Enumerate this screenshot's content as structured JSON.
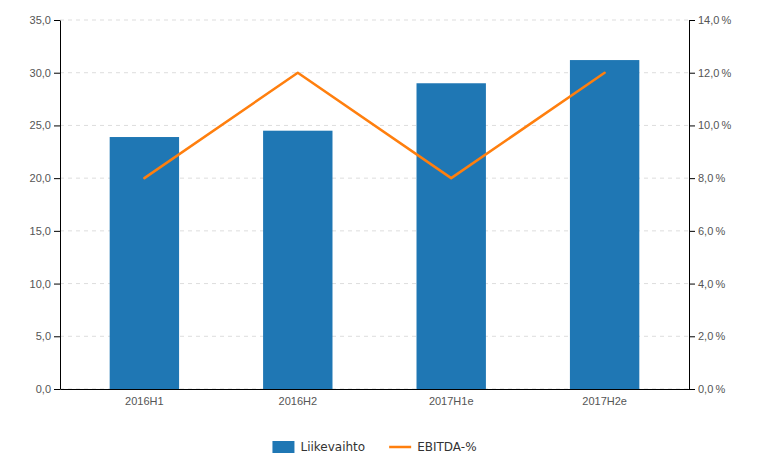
{
  "chart_data": {
    "type": "bar",
    "categories": [
      "2016H1",
      "2016H2",
      "2017H1e",
      "2017H2e"
    ],
    "series": [
      {
        "name": "Liikevaihto",
        "type": "bar",
        "values": [
          23.9,
          24.5,
          29.0,
          31.2
        ]
      },
      {
        "name": "EBITDA-%",
        "type": "line",
        "axis": "y2",
        "values": [
          8.0,
          12.0,
          8.0,
          12.0
        ]
      }
    ],
    "ylim": [
      0,
      35
    ],
    "yticks": [
      {
        "value": 0.0,
        "label": "0,0"
      },
      {
        "value": 5.0,
        "label": "5,0"
      },
      {
        "value": 10.0,
        "label": "10,0"
      },
      {
        "value": 15.0,
        "label": "15,0"
      },
      {
        "value": 20.0,
        "label": "20,0"
      },
      {
        "value": 25.0,
        "label": "25,0"
      },
      {
        "value": 30.0,
        "label": "30,0"
      },
      {
        "value": 35.0,
        "label": "35,0"
      }
    ],
    "y2lim": [
      0,
      14
    ],
    "y2ticks": [
      {
        "value": 0.0,
        "label": "0,0 %"
      },
      {
        "value": 2.0,
        "label": "2,0 %"
      },
      {
        "value": 4.0,
        "label": "4,0 %"
      },
      {
        "value": 6.0,
        "label": "6,0 %"
      },
      {
        "value": 8.0,
        "label": "8,0 %"
      },
      {
        "value": 10.0,
        "label": "10,0 %"
      },
      {
        "value": 12.0,
        "label": "12,0 %"
      },
      {
        "value": 14.0,
        "label": "14,0 %"
      }
    ],
    "grid": true,
    "legend": "bottom"
  }
}
